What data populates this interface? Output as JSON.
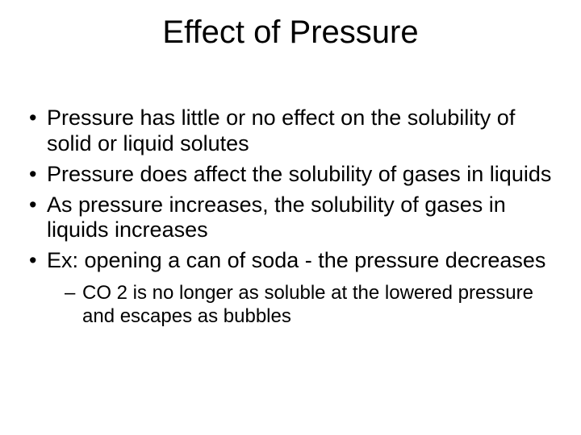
{
  "title": "Effect of Pressure",
  "bullets": [
    "Pressure has little or no effect on the solubility of solid or liquid solutes",
    "Pressure does affect the solubility of gases in liquids",
    "As pressure increases, the solubility of gases in liquids increases",
    "Ex: opening a can of soda - the pressure decreases"
  ],
  "sub_bullets": [
    "CO 2 is no longer as soluble at the lowered pressure and escapes as bubbles"
  ],
  "styles": {
    "background_color": "#ffffff",
    "text_color": "#000000",
    "title_fontsize": 40,
    "bullet_fontsize": 27,
    "sub_bullet_fontsize": 24,
    "font_family": "Arial"
  }
}
